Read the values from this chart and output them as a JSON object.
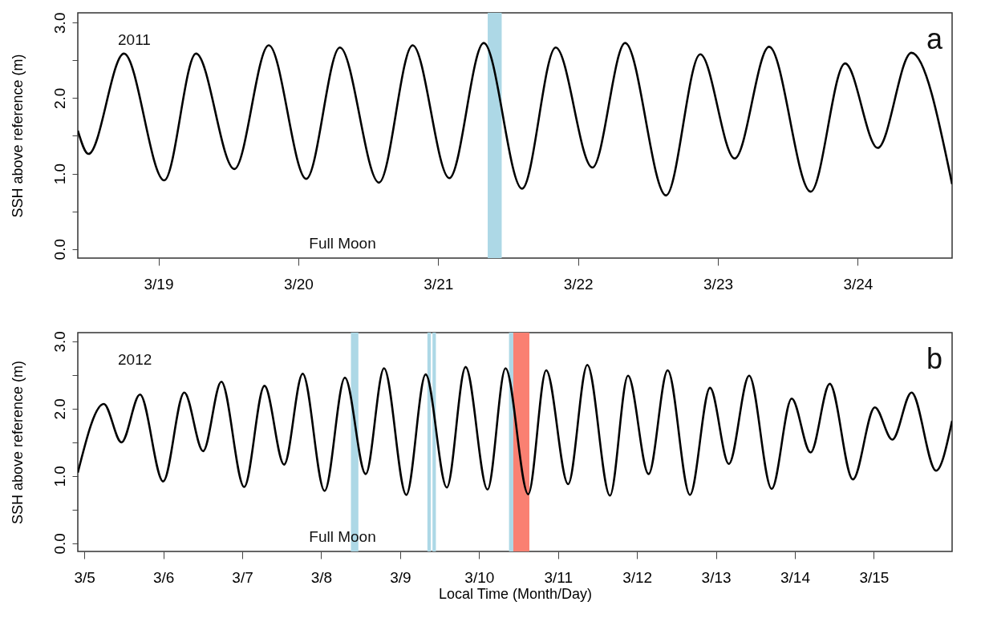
{
  "chart_data": [
    {
      "type": "line",
      "ylabel": "SSH above reference (m)",
      "annotations": [
        "2011",
        "Full Moon",
        "a"
      ],
      "xlim": [
        "2011-03-18T10:10",
        "2011-03-24T16:11"
      ],
      "xticks": [
        {
          "value": "2011-03-19",
          "label": "3/19"
        },
        {
          "value": "2011-03-20",
          "label": "3/20"
        },
        {
          "value": "2011-03-21",
          "label": "3/21"
        },
        {
          "value": "2011-03-22",
          "label": "3/22"
        },
        {
          "value": "2011-03-23",
          "label": "3/23"
        },
        {
          "value": "2011-03-24",
          "label": "3/24"
        }
      ],
      "ylim": [
        -0.12,
        3.13
      ],
      "yticks": [
        {
          "value": 0,
          "label": "0.0"
        },
        {
          "value": 0.5,
          "label": null
        },
        {
          "value": 1,
          "label": "1.0"
        },
        {
          "value": 1.5,
          "label": null
        },
        {
          "value": 2,
          "label": "2.0"
        },
        {
          "value": 2.5,
          "label": null
        },
        {
          "value": 3,
          "label": "3.0"
        }
      ],
      "x": [
        "2011-03-18T10:10",
        "2011-03-18T12:00",
        "2011-03-18T18:05",
        "2011-03-19T01:00",
        "2011-03-19T06:27",
        "2011-03-19T13:02",
        "2011-03-19T18:56",
        "2011-03-20T01:22",
        "2011-03-20T07:08",
        "2011-03-20T13:51",
        "2011-03-20T19:37",
        "2011-03-21T01:55",
        "2011-03-21T07:49",
        "2011-03-21T14:24",
        "2011-03-21T20:10",
        "2011-03-22T02:28",
        "2011-03-22T08:05",
        "2011-03-22T15:06",
        "2011-03-22T20:58",
        "2011-03-23T02:53",
        "2011-03-23T08:47",
        "2011-03-23T15:55",
        "2011-03-23T21:49",
        "2011-03-24T03:26",
        "2011-03-24T09:12",
        "2011-03-24T16:11"
      ],
      "series": [
        {
          "color": "#000000",
          "values": [
            1.57,
            1.26,
            2.59,
            0.91,
            2.59,
            1.06,
            2.7,
            0.93,
            2.67,
            0.88,
            2.7,
            0.94,
            2.73,
            0.8,
            2.67,
            1.08,
            2.73,
            0.71,
            2.58,
            1.2,
            2.68,
            0.76,
            2.46,
            1.34,
            2.6,
            0.86
          ]
        }
      ],
      "bands": [
        {
          "axis": "x",
          "from": "2011-03-21T08:30",
          "to": "2011-03-21T10:54",
          "color": "#add8e6"
        }
      ],
      "grid": false,
      "line_style": "solid"
    },
    {
      "type": "line",
      "xlabel": "Local Time (Month/Day)",
      "ylabel": "SSH above reference (m)",
      "annotations": [
        "2012",
        "Full Moon",
        "b"
      ],
      "xlim": [
        "2012-03-04T22:00",
        "2012-03-15T23:48"
      ],
      "xticks": [
        {
          "value": "2012-03-05",
          "label": "3/5"
        },
        {
          "value": "2012-03-06",
          "label": "3/6"
        },
        {
          "value": "2012-03-07",
          "label": "3/7"
        },
        {
          "value": "2012-03-08",
          "label": "3/8"
        },
        {
          "value": "2012-03-09",
          "label": "3/9"
        },
        {
          "value": "2012-03-10",
          "label": "3/10"
        },
        {
          "value": "2012-03-11",
          "label": "3/11"
        },
        {
          "value": "2012-03-12",
          "label": "3/12"
        },
        {
          "value": "2012-03-13",
          "label": "3/13"
        },
        {
          "value": "2012-03-14",
          "label": "3/14"
        },
        {
          "value": "2012-03-15",
          "label": "3/15"
        }
      ],
      "ylim": [
        -0.12,
        3.13
      ],
      "yticks": [
        {
          "value": 0,
          "label": "0.0"
        },
        {
          "value": 0.5,
          "label": null
        },
        {
          "value": 1,
          "label": "1.0"
        },
        {
          "value": 1.5,
          "label": null
        },
        {
          "value": 2,
          "label": "2.0"
        },
        {
          "value": 2.5,
          "label": null
        },
        {
          "value": 3,
          "label": "3.0"
        }
      ],
      "x": [
        "2012-03-04T22:00",
        "2012-03-05T05:54",
        "2012-03-05T11:17",
        "2012-03-05T16:54",
        "2012-03-05T23:57",
        "2012-03-06T06:22",
        "2012-03-06T12:06",
        "2012-03-06T17:38",
        "2012-03-07T00:35",
        "2012-03-07T06:45",
        "2012-03-07T12:43",
        "2012-03-07T18:22",
        "2012-03-08T01:02",
        "2012-03-08T07:12",
        "2012-03-08T13:32",
        "2012-03-08T19:06",
        "2012-03-09T01:52",
        "2012-03-09T07:45",
        "2012-03-09T14:11",
        "2012-03-09T19:54",
        "2012-03-10T02:34",
        "2012-03-10T08:02",
        "2012-03-10T14:56",
        "2012-03-10T20:24",
        "2012-03-11T03:04",
        "2012-03-11T08:54",
        "2012-03-11T15:47",
        "2012-03-11T21:16",
        "2012-03-12T03:32",
        "2012-03-12T09:20",
        "2012-03-12T16:06",
        "2012-03-12T22:12",
        "2012-03-13T03:56",
        "2012-03-13T10:06",
        "2012-03-13T16:57",
        "2012-03-13T23:02",
        "2012-03-14T04:47",
        "2012-03-14T10:36",
        "2012-03-14T17:38",
        "2012-03-15T00:19",
        "2012-03-15T05:38",
        "2012-03-15T11:28",
        "2012-03-15T18:55",
        "2012-03-15T23:48"
      ],
      "series": [
        {
          "color": "#000000",
          "values": [
            1.05,
            2.07,
            1.5,
            2.21,
            0.92,
            2.24,
            1.37,
            2.4,
            0.84,
            2.34,
            1.17,
            2.52,
            0.78,
            2.46,
            1.03,
            2.6,
            0.72,
            2.51,
            0.83,
            2.62,
            0.8,
            2.6,
            0.73,
            2.57,
            0.88,
            2.65,
            0.71,
            2.49,
            1.03,
            2.57,
            0.72,
            2.31,
            1.18,
            2.49,
            0.81,
            2.15,
            1.35,
            2.37,
            0.95,
            2.02,
            1.54,
            2.24,
            1.08,
            1.82
          ]
        }
      ],
      "bands": [
        {
          "axis": "x",
          "from": "2012-03-08T09:02",
          "to": "2012-03-08T11:18",
          "color": "#add8e6"
        },
        {
          "axis": "x",
          "from": "2012-03-09T08:17",
          "to": "2012-03-09T09:20",
          "color": "#add8e6"
        },
        {
          "axis": "x",
          "from": "2012-03-09T09:50",
          "to": "2012-03-09T10:52",
          "color": "#add8e6"
        },
        {
          "axis": "x",
          "from": "2012-03-10T09:06",
          "to": "2012-03-10T10:24",
          "color": "#add8e6"
        },
        {
          "axis": "x",
          "from": "2012-03-10T10:24",
          "to": "2012-03-10T15:17",
          "color": "#fa8072"
        }
      ],
      "grid": false,
      "line_style": "solid"
    }
  ]
}
